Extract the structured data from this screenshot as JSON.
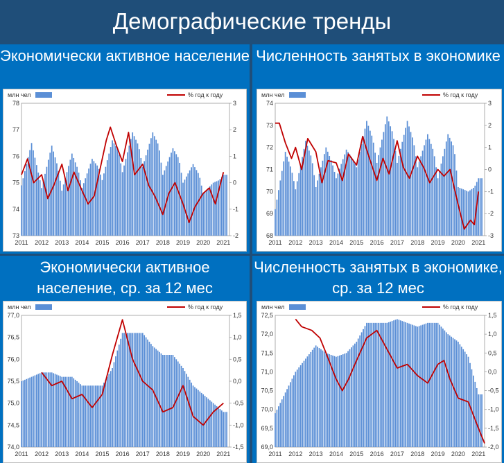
{
  "header": {
    "title": "Демографические тренды"
  },
  "colors": {
    "bars": "#5b8fd6",
    "line": "#c00000",
    "panel": "#0070c0",
    "banner": "#1f4e79"
  },
  "chart_data": [
    {
      "type": "bar",
      "title": "Экономически активное население",
      "legend_left": "млн чел",
      "legend_right": "% год к году",
      "x_labels": [
        "2011",
        "2012",
        "2013",
        "2014",
        "2015",
        "2016",
        "2017",
        "2018",
        "2019",
        "2020",
        "2021"
      ],
      "y_left": {
        "ylim": [
          73,
          78
        ],
        "ticks": [
          "73",
          "74",
          "75",
          "76",
          "77",
          "78"
        ]
      },
      "y_right": {
        "ylim": [
          -2,
          3
        ],
        "ticks": [
          "-2",
          "-1",
          "0",
          "1",
          "2",
          "3"
        ]
      },
      "series": [
        {
          "axis": "left",
          "kind": "bar",
          "points": [
            [
              2011.0,
              74.9
            ],
            [
              2011.5,
              76.5
            ],
            [
              2011.8,
              75.5
            ],
            [
              2012.0,
              74.8
            ],
            [
              2012.5,
              76.4
            ],
            [
              2012.8,
              75.6
            ],
            [
              2013.0,
              74.7
            ],
            [
              2013.5,
              76.1
            ],
            [
              2013.8,
              75.5
            ],
            [
              2014.0,
              74.8
            ],
            [
              2014.5,
              75.9
            ],
            [
              2014.8,
              75.6
            ],
            [
              2015.0,
              75.1
            ],
            [
              2015.5,
              76.6
            ],
            [
              2015.8,
              76.2
            ],
            [
              2016.0,
              75.4
            ],
            [
              2016.5,
              76.9
            ],
            [
              2016.8,
              76.4
            ],
            [
              2017.0,
              75.6
            ],
            [
              2017.5,
              76.9
            ],
            [
              2017.8,
              76.4
            ],
            [
              2018.0,
              75.3
            ],
            [
              2018.5,
              76.3
            ],
            [
              2018.8,
              75.9
            ],
            [
              2019.0,
              75.0
            ],
            [
              2019.5,
              75.7
            ],
            [
              2019.8,
              75.3
            ],
            [
              2020.0,
              74.6
            ],
            [
              2020.5,
              75.0
            ],
            [
              2020.8,
              75.1
            ],
            [
              2021.0,
              75.3
            ]
          ]
        },
        {
          "axis": "right",
          "kind": "line",
          "points": [
            [
              2011.0,
              0.3
            ],
            [
              2011.3,
              0.9
            ],
            [
              2011.6,
              0.0
            ],
            [
              2012.0,
              0.3
            ],
            [
              2012.3,
              -0.6
            ],
            [
              2012.6,
              -0.1
            ],
            [
              2013.0,
              0.7
            ],
            [
              2013.3,
              -0.3
            ],
            [
              2013.6,
              0.4
            ],
            [
              2014.0,
              -0.3
            ],
            [
              2014.3,
              -0.8
            ],
            [
              2014.6,
              -0.5
            ],
            [
              2015.0,
              0.9
            ],
            [
              2015.2,
              1.6
            ],
            [
              2015.4,
              2.1
            ],
            [
              2015.7,
              1.4
            ],
            [
              2016.0,
              0.8
            ],
            [
              2016.3,
              1.9
            ],
            [
              2016.6,
              0.3
            ],
            [
              2017.0,
              0.7
            ],
            [
              2017.3,
              -0.1
            ],
            [
              2017.6,
              -0.5
            ],
            [
              2018.0,
              -1.2
            ],
            [
              2018.3,
              -0.4
            ],
            [
              2018.6,
              0.0
            ],
            [
              2019.0,
              -0.8
            ],
            [
              2019.3,
              -1.5
            ],
            [
              2019.6,
              -0.9
            ],
            [
              2020.0,
              -0.4
            ],
            [
              2020.3,
              -0.2
            ],
            [
              2020.6,
              -0.8
            ],
            [
              2021.0,
              0.4
            ]
          ]
        }
      ]
    },
    {
      "type": "bar",
      "title": "Численность занятых в экономике",
      "legend_left": "млн чел",
      "legend_right": "% год к году",
      "x_labels": [
        "2011",
        "2012",
        "2013",
        "2014",
        "2015",
        "2016",
        "2017",
        "2018",
        "2019",
        "2020",
        "2021"
      ],
      "y_left": {
        "ylim": [
          68,
          74
        ],
        "ticks": [
          "68",
          "69",
          "70",
          "71",
          "72",
          "73",
          "74"
        ]
      },
      "y_right": {
        "ylim": [
          -3,
          3
        ],
        "ticks": [
          "-3",
          "-2",
          "-1",
          "0",
          "1",
          "2",
          "3"
        ]
      },
      "series": [
        {
          "axis": "left",
          "kind": "bar",
          "points": [
            [
              2011.0,
              69.2
            ],
            [
              2011.5,
              71.8
            ],
            [
              2011.8,
              71.0
            ],
            [
              2012.0,
              70.1
            ],
            [
              2012.5,
              72.3
            ],
            [
              2012.8,
              71.5
            ],
            [
              2013.0,
              70.2
            ],
            [
              2013.5,
              72.0
            ],
            [
              2013.8,
              71.3
            ],
            [
              2014.0,
              70.6
            ],
            [
              2014.5,
              71.9
            ],
            [
              2014.8,
              71.5
            ],
            [
              2015.0,
              71.1
            ],
            [
              2015.5,
              73.2
            ],
            [
              2015.8,
              72.4
            ],
            [
              2016.0,
              71.3
            ],
            [
              2016.5,
              73.4
            ],
            [
              2016.8,
              72.6
            ],
            [
              2017.0,
              71.3
            ],
            [
              2017.5,
              73.2
            ],
            [
              2017.8,
              72.3
            ],
            [
              2018.0,
              71.1
            ],
            [
              2018.5,
              72.6
            ],
            [
              2018.8,
              71.8
            ],
            [
              2019.0,
              70.6
            ],
            [
              2019.5,
              72.6
            ],
            [
              2019.8,
              72.0
            ],
            [
              2020.0,
              70.2
            ],
            [
              2020.5,
              70.0
            ],
            [
              2020.8,
              70.2
            ],
            [
              2021.0,
              70.6
            ]
          ]
        },
        {
          "axis": "right",
          "kind": "line",
          "points": [
            [
              2011.0,
              2.1
            ],
            [
              2011.2,
              2.1
            ],
            [
              2011.5,
              1.2
            ],
            [
              2011.8,
              0.5
            ],
            [
              2012.0,
              1.0
            ],
            [
              2012.3,
              0.0
            ],
            [
              2012.6,
              1.4
            ],
            [
              2013.0,
              0.8
            ],
            [
              2013.3,
              -0.6
            ],
            [
              2013.6,
              0.4
            ],
            [
              2014.0,
              0.3
            ],
            [
              2014.3,
              -0.5
            ],
            [
              2014.6,
              0.7
            ],
            [
              2015.0,
              0.2
            ],
            [
              2015.3,
              1.5
            ],
            [
              2015.6,
              0.6
            ],
            [
              2016.0,
              -0.5
            ],
            [
              2016.3,
              0.5
            ],
            [
              2016.6,
              -0.2
            ],
            [
              2017.0,
              1.3
            ],
            [
              2017.3,
              0.1
            ],
            [
              2017.6,
              -0.4
            ],
            [
              2018.0,
              0.6
            ],
            [
              2018.3,
              0.1
            ],
            [
              2018.6,
              -0.6
            ],
            [
              2019.0,
              0.0
            ],
            [
              2019.3,
              -0.3
            ],
            [
              2019.6,
              0.0
            ],
            [
              2020.0,
              -1.6
            ],
            [
              2020.3,
              -2.7
            ],
            [
              2020.6,
              -2.3
            ],
            [
              2020.8,
              -2.5
            ],
            [
              2021.0,
              -1.0
            ]
          ]
        }
      ]
    },
    {
      "type": "bar",
      "title": "Экономически активное население, ср. за 12 мес",
      "legend_left": "млн чел",
      "legend_right": "% год к году",
      "x_labels": [
        "2011",
        "2012",
        "2013",
        "2014",
        "2015",
        "2016",
        "2017",
        "2018",
        "2019",
        "2020",
        "2021"
      ],
      "y_left": {
        "ylim": [
          74.0,
          77.0
        ],
        "ticks": [
          "74,0",
          "74,5",
          "75,0",
          "75,5",
          "76,0",
          "76,5",
          "77,0"
        ]
      },
      "y_right": {
        "ylim": [
          -1.5,
          1.5
        ],
        "ticks": [
          "-1,5",
          "-1,0",
          "-0,5",
          "0,0",
          "0,5",
          "1,0",
          "1,5"
        ]
      },
      "series": [
        {
          "axis": "left",
          "kind": "bar",
          "points": [
            [
              2011.0,
              75.5
            ],
            [
              2012.0,
              75.7
            ],
            [
              2012.5,
              75.7
            ],
            [
              2013.0,
              75.6
            ],
            [
              2013.5,
              75.6
            ],
            [
              2014.0,
              75.4
            ],
            [
              2014.5,
              75.4
            ],
            [
              2015.0,
              75.4
            ],
            [
              2015.5,
              75.8
            ],
            [
              2016.0,
              76.6
            ],
            [
              2016.5,
              76.6
            ],
            [
              2017.0,
              76.6
            ],
            [
              2017.5,
              76.3
            ],
            [
              2018.0,
              76.1
            ],
            [
              2018.5,
              76.1
            ],
            [
              2019.0,
              75.8
            ],
            [
              2019.5,
              75.4
            ],
            [
              2020.0,
              75.2
            ],
            [
              2020.5,
              75.0
            ],
            [
              2021.0,
              74.8
            ]
          ]
        },
        {
          "axis": "right",
          "kind": "line",
          "points": [
            [
              2012.0,
              0.2
            ],
            [
              2012.5,
              -0.1
            ],
            [
              2013.0,
              0.0
            ],
            [
              2013.5,
              -0.4
            ],
            [
              2014.0,
              -0.3
            ],
            [
              2014.5,
              -0.6
            ],
            [
              2015.0,
              -0.3
            ],
            [
              2015.5,
              0.6
            ],
            [
              2016.0,
              1.4
            ],
            [
              2016.5,
              0.5
            ],
            [
              2017.0,
              0.0
            ],
            [
              2017.5,
              -0.2
            ],
            [
              2018.0,
              -0.7
            ],
            [
              2018.5,
              -0.6
            ],
            [
              2019.0,
              -0.1
            ],
            [
              2019.5,
              -0.8
            ],
            [
              2020.0,
              -1.0
            ],
            [
              2020.5,
              -0.7
            ],
            [
              2021.0,
              -0.5
            ]
          ]
        }
      ]
    },
    {
      "type": "bar",
      "title": "Численность занятых в экономике, ср. за 12 мес",
      "legend_left": "млн чел",
      "legend_right": "% год к году",
      "x_labels": [
        "2011",
        "2012",
        "2013",
        "2014",
        "2015",
        "2016",
        "2017",
        "2018",
        "2019",
        "2020",
        "2021"
      ],
      "y_left": {
        "ylim": [
          69.0,
          72.5
        ],
        "ticks": [
          "69,0",
          "69,5",
          "70,0",
          "70,5",
          "71,0",
          "71,5",
          "72,0",
          "72,5"
        ]
      },
      "y_right": {
        "ylim": [
          -2.0,
          1.5
        ],
        "ticks": [
          "-2,0",
          "-1,5",
          "-1,0",
          "-0,5",
          "0,0",
          "0,5",
          "1,0",
          "1,5"
        ]
      },
      "series": [
        {
          "axis": "left",
          "kind": "bar",
          "points": [
            [
              2011.0,
              69.9
            ],
            [
              2012.0,
              71.0
            ],
            [
              2013.0,
              71.7
            ],
            [
              2013.5,
              71.5
            ],
            [
              2014.0,
              71.4
            ],
            [
              2014.5,
              71.5
            ],
            [
              2015.0,
              71.8
            ],
            [
              2015.5,
              72.3
            ],
            [
              2016.0,
              72.3
            ],
            [
              2016.5,
              72.3
            ],
            [
              2017.0,
              72.4
            ],
            [
              2017.5,
              72.3
            ],
            [
              2018.0,
              72.2
            ],
            [
              2018.5,
              72.3
            ],
            [
              2019.0,
              72.3
            ],
            [
              2019.5,
              72.0
            ],
            [
              2020.0,
              71.8
            ],
            [
              2020.5,
              71.4
            ],
            [
              2021.0,
              70.4
            ]
          ]
        },
        {
          "axis": "right",
          "kind": "line",
          "points": [
            [
              2012.0,
              1.4
            ],
            [
              2012.3,
              1.2
            ],
            [
              2012.8,
              1.1
            ],
            [
              2013.2,
              0.9
            ],
            [
              2013.5,
              0.5
            ],
            [
              2014.0,
              -0.2
            ],
            [
              2014.3,
              -0.5
            ],
            [
              2014.6,
              -0.2
            ],
            [
              2015.0,
              0.3
            ],
            [
              2015.5,
              0.9
            ],
            [
              2016.0,
              1.1
            ],
            [
              2016.5,
              0.6
            ],
            [
              2017.0,
              0.1
            ],
            [
              2017.5,
              0.2
            ],
            [
              2018.0,
              -0.1
            ],
            [
              2018.5,
              -0.3
            ],
            [
              2019.0,
              0.2
            ],
            [
              2019.3,
              0.3
            ],
            [
              2019.6,
              -0.2
            ],
            [
              2020.0,
              -0.7
            ],
            [
              2020.5,
              -0.8
            ],
            [
              2021.0,
              -1.5
            ],
            [
              2021.3,
              -1.9
            ]
          ]
        }
      ]
    }
  ]
}
